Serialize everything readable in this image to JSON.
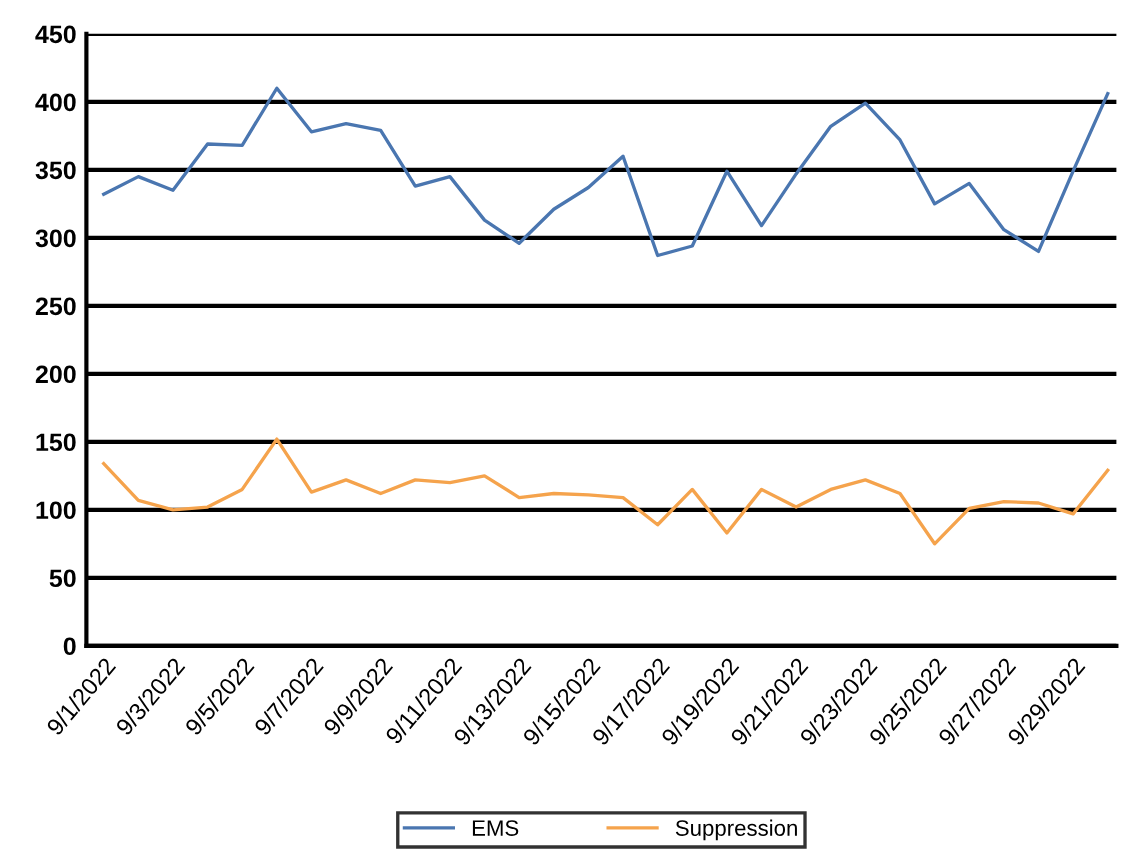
{
  "chart_data": {
    "type": "line",
    "categories": [
      "9/1/2022",
      null,
      "9/3/2022",
      null,
      "9/5/2022",
      null,
      "9/7/2022",
      null,
      "9/9/2022",
      null,
      "9/11/2022",
      null,
      "9/13/2022",
      null,
      "9/15/2022",
      null,
      "9/17/2022",
      null,
      "9/19/2022",
      null,
      "9/21/2022",
      null,
      "9/23/2022",
      null,
      "9/25/2022",
      null,
      "9/27/2022",
      null,
      "9/29/2022",
      null
    ],
    "series": [
      {
        "name": "EMS",
        "color": "#4a76b0",
        "values": [
          332,
          345,
          335,
          369,
          368,
          410,
          378,
          384,
          379,
          338,
          345,
          313,
          296,
          321,
          337,
          360,
          287,
          294,
          349,
          309,
          347,
          382,
          399,
          372,
          325,
          340,
          306,
          290,
          349,
          406
        ]
      },
      {
        "name": "Suppression",
        "color": "#f5a34c",
        "values": [
          134,
          107,
          100,
          102,
          115,
          152,
          113,
          122,
          112,
          122,
          120,
          125,
          109,
          112,
          111,
          109,
          89,
          115,
          83,
          115,
          102,
          115,
          122,
          112,
          75,
          101,
          106,
          105,
          97,
          129
        ]
      }
    ],
    "ylim": [
      0,
      450
    ],
    "yticks": [
      0,
      50,
      100,
      150,
      200,
      250,
      300,
      350,
      400,
      450
    ],
    "grid": "y",
    "legend": "bottom",
    "marker": "none",
    "line_style": "solid"
  }
}
